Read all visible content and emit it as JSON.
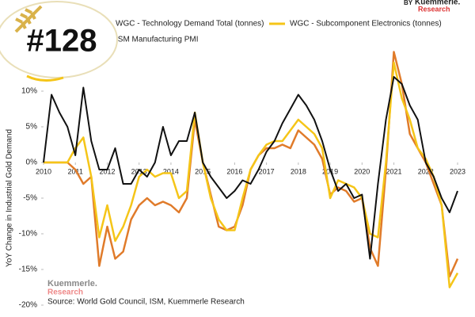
{
  "chart_data": {
    "type": "line",
    "badge": "#128",
    "byline": "BY",
    "brand": [
      "Kuemmerle.",
      "Research"
    ],
    "watermark": [
      "Kuemmerle.",
      "Research"
    ],
    "ylabel": "YoY Change in Industrial Gold Demand",
    "source": "Source: World Gold Council, ISM, Kuemmerle Research",
    "xlim": [
      2010,
      2023
    ],
    "xticks": [
      2010,
      2011,
      2012,
      2013,
      2014,
      2015,
      2016,
      2017,
      2018,
      2019,
      2020,
      2021,
      2022,
      2023
    ],
    "ylim": [
      -20,
      16
    ],
    "yticks": [
      {
        "value": -20,
        "label": "-20%"
      },
      {
        "value": -15,
        "label": "-15%"
      },
      {
        "value": -10,
        "label": "-10%"
      },
      {
        "value": -5,
        "label": "-5%"
      },
      {
        "value": 0,
        "label": "0%"
      },
      {
        "value": 5,
        "label": "5%"
      },
      {
        "value": 10,
        "label": "10%"
      }
    ],
    "x": [
      2010,
      2010.25,
      2010.5,
      2010.75,
      2011,
      2011.25,
      2011.5,
      2011.75,
      2012,
      2012.25,
      2012.5,
      2012.75,
      2013,
      2013.25,
      2013.5,
      2013.75,
      2014,
      2014.25,
      2014.5,
      2014.75,
      2015,
      2015.25,
      2015.5,
      2015.75,
      2016,
      2016.25,
      2016.5,
      2016.75,
      2017,
      2017.25,
      2017.5,
      2017.75,
      2018,
      2018.25,
      2018.5,
      2018.75,
      2019,
      2019.25,
      2019.5,
      2019.75,
      2020,
      2020.25,
      2020.5,
      2020.75,
      2021,
      2021.25,
      2021.5,
      2021.75,
      2022,
      2022.25,
      2022.5,
      2022.75,
      2023
    ],
    "series": [
      {
        "name": "WGC - Technology Demand Total (tonnes)",
        "color": "#e07b2a",
        "values": [
          0,
          0,
          0,
          0,
          -1,
          -3,
          -2,
          -14.5,
          -9,
          -13.5,
          -12.5,
          -8,
          -6,
          -5,
          -6,
          -5.5,
          -6,
          -7,
          -5,
          6,
          0,
          -4.5,
          -9,
          -9.5,
          -9,
          -6,
          -1,
          1,
          2,
          2,
          2.5,
          2,
          4.5,
          3.5,
          2.5,
          0.5,
          -4.5,
          -3.5,
          -4,
          -5.5,
          -5,
          -12,
          -14.5,
          -1,
          15.5,
          11,
          4,
          2,
          0,
          -3,
          -6,
          -16,
          -13.5
        ]
      },
      {
        "name": "WGC - Subcomponent Electronics (tonnes)",
        "color": "#f5c518",
        "values": [
          0,
          0,
          0,
          0,
          2,
          3.5,
          -2,
          -10.5,
          -6,
          -11,
          -9,
          -6,
          -2,
          -1,
          -2,
          -1.5,
          -1.5,
          -5,
          -4,
          7,
          0,
          -5,
          -8,
          -9.5,
          -9.5,
          -5,
          -1,
          1,
          2.5,
          3,
          3,
          4.5,
          6,
          5,
          4,
          2,
          -5,
          -2.5,
          -3,
          -3.5,
          -5,
          -10,
          -10.5,
          0,
          14,
          9,
          6,
          2,
          0.5,
          -2,
          -6,
          -17.5,
          -15.5
        ]
      },
      {
        "name": "ISM Manufacturing PMI",
        "color": "#111111",
        "values": [
          0,
          9.5,
          7,
          5,
          1,
          10.5,
          3,
          -1,
          -1,
          2,
          -3,
          -3,
          -1,
          -2,
          0,
          5,
          1,
          3,
          3,
          7,
          0,
          -2,
          -3.5,
          -5,
          -4,
          -2.5,
          -3,
          -1,
          1.5,
          3,
          5.5,
          7.5,
          9.5,
          8,
          6,
          3,
          -1,
          -4,
          -3,
          -5,
          -4.5,
          -13.5,
          -3,
          6,
          12,
          11,
          8,
          6,
          0,
          -2,
          -5,
          -7,
          -4
        ]
      }
    ]
  }
}
